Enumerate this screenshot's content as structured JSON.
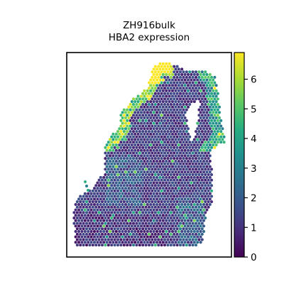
{
  "chart_data": {
    "type": "heatmap",
    "title_lines": [
      "ZH916bulk",
      "HBA2 expression"
    ],
    "xlabel": "",
    "ylabel": "",
    "colormap": "viridis",
    "colorbar": {
      "min": 0,
      "max": 6.9,
      "ticks": [
        0,
        1,
        2,
        3,
        4,
        5,
        6
      ],
      "tick_labels": [
        "0",
        "1",
        "2",
        "3",
        "4",
        "5",
        "6"
      ],
      "placement": "right"
    },
    "grid": false,
    "description_of_values": "Spatial spots colored by HBA2 expression; most spots 0-2, high values (5-6.9) along upper-left tissue edge"
  }
}
